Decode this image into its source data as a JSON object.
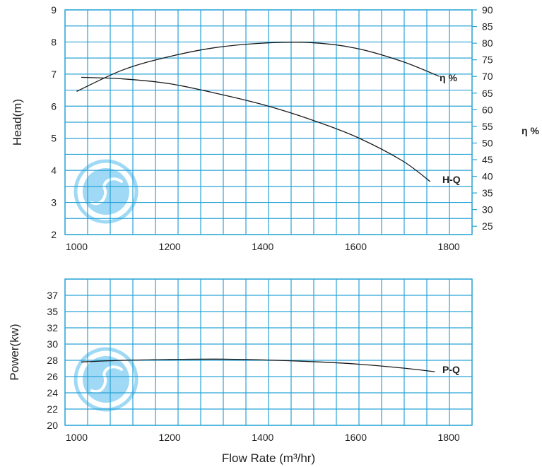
{
  "colors": {
    "grid": "#29a3d6",
    "curve": "#1a1a1a",
    "logo": "#8fd3f4",
    "text": "#222222"
  },
  "icons": {
    "logo": "swirl-logo-icon"
  },
  "chart_data": [
    {
      "type": "line",
      "title": "",
      "xlabel": "Flow Rate (m³/hr)",
      "ylabel": "Head(m)",
      "y2label": "η %",
      "xlim": [
        975,
        1850
      ],
      "ylim": [
        2,
        9
      ],
      "y2lim": [
        22.5,
        90
      ],
      "x_ticks": [
        "1000",
        "1200",
        "1400",
        "1600",
        "1800"
      ],
      "y_ticks": [
        "2",
        "3",
        "4",
        "5",
        "6",
        "7",
        "8",
        "9"
      ],
      "y2_ticks": [
        "25",
        "30",
        "35",
        "40",
        "45",
        "50",
        "55",
        "60",
        "65",
        "70",
        "75",
        "80",
        "85",
        "90"
      ],
      "grid": true,
      "series": [
        {
          "name": "H-Q",
          "axis": "left",
          "x": [
            1010,
            1100,
            1200,
            1300,
            1400,
            1500,
            1600,
            1700,
            1760
          ],
          "y": [
            6.9,
            6.85,
            6.7,
            6.4,
            6.05,
            5.6,
            5.05,
            4.3,
            3.65
          ]
        },
        {
          "name": "η %",
          "axis": "right",
          "x": [
            1000,
            1100,
            1200,
            1300,
            1400,
            1500,
            1600,
            1700,
            1780
          ],
          "y": [
            65.5,
            72,
            76,
            78.7,
            80,
            80.2,
            78.5,
            74.5,
            70
          ]
        }
      ]
    },
    {
      "type": "line",
      "title": "",
      "xlabel": "Flow Rate (m³/hr)",
      "ylabel": "Power(kw)",
      "xlim": [
        975,
        1850
      ],
      "ylim": [
        20,
        39
      ],
      "x_ticks": [
        "1000",
        "1200",
        "1400",
        "1600",
        "1800"
      ],
      "y_ticks": [
        "20",
        "22",
        "24",
        "26",
        "28",
        "30",
        "32",
        "35",
        "37"
      ],
      "grid": true,
      "series": [
        {
          "name": "P-Q",
          "x": [
            1010,
            1100,
            1200,
            1300,
            1400,
            1500,
            1600,
            1700,
            1770
          ],
          "y": [
            27.8,
            28.0,
            28.1,
            28.15,
            28.05,
            27.85,
            27.55,
            27.05,
            26.6
          ]
        }
      ]
    }
  ]
}
